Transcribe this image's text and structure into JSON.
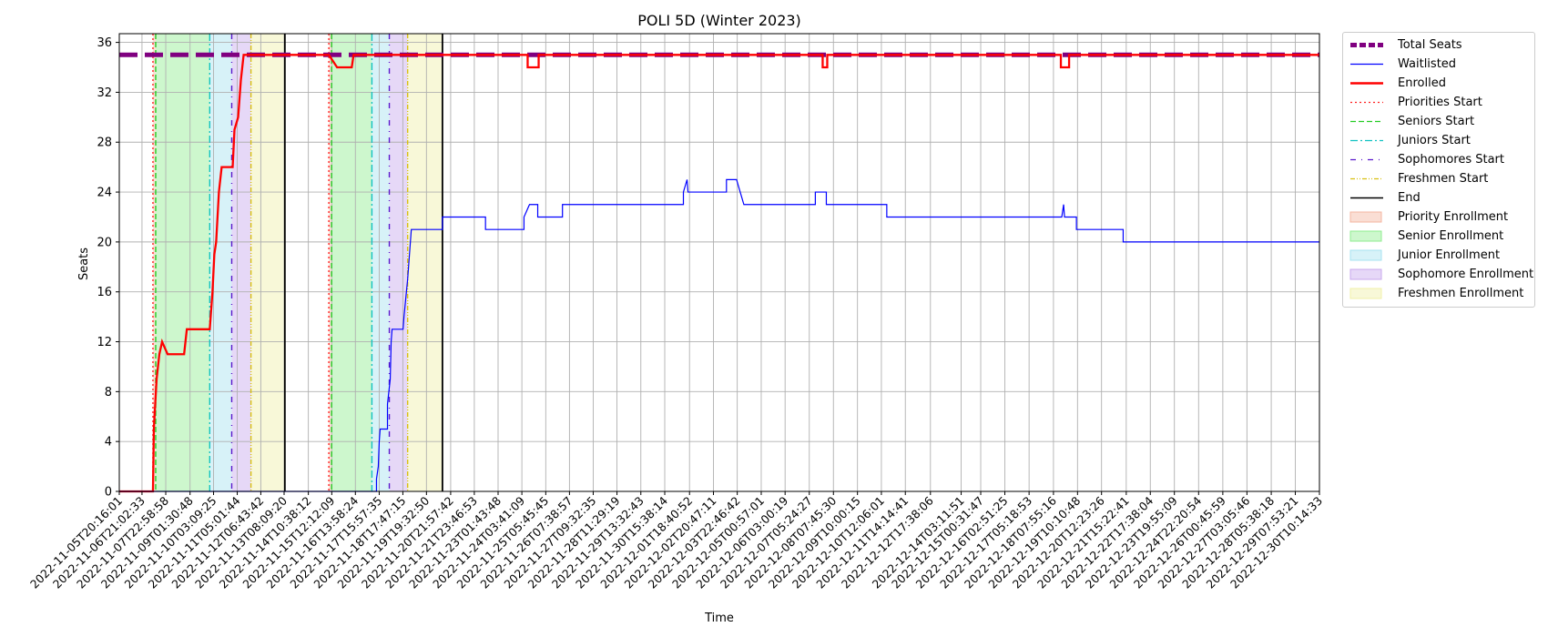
{
  "chart_data": {
    "type": "line",
    "title": "POLI 5D (Winter 2023)",
    "xlabel": "Time",
    "ylabel": "Seats",
    "ylim": [
      0,
      36.7
    ],
    "yticks": [
      0,
      4,
      8,
      12,
      16,
      20,
      24,
      28,
      32,
      36
    ],
    "grid": true,
    "legend_placement": "outside right, top",
    "xlim": [
      "2022-11-05T20:16:01",
      "2022-12-30T10:14:33"
    ],
    "x_tick_labels": [
      "2022-11-05T20:16:01",
      "2022-11-06T21:02:33",
      "2022-11-07T22:58:58",
      "2022-11-09T01:30:48",
      "2022-11-10T03:09:25",
      "2022-11-11T05:01:44",
      "2022-11-12T06:43:42",
      "2022-11-13T08:09:20",
      "2022-11-14T10:38:12",
      "2022-11-15T12:12:09",
      "2022-11-16T13:58:24",
      "2022-11-17T15:57:35",
      "2022-11-18T17:47:15",
      "2022-11-19T19:32:50",
      "2022-11-20T21:57:42",
      "2022-11-21T23:46:53",
      "2022-11-23T01:43:48",
      "2022-11-24T03:41:09",
      "2022-11-25T05:45:45",
      "2022-11-26T07:38:57",
      "2022-11-27T09:32:35",
      "2022-11-28T11:29:19",
      "2022-11-29T13:32:43",
      "2022-11-30T15:38:14",
      "2022-12-01T18:40:52",
      "2022-12-02T20:47:11",
      "2022-12-03T22:46:42",
      "2022-12-05T00:57:01",
      "2022-12-06T03:00:19",
      "2022-12-07T05:24:27",
      "2022-12-08T07:45:30",
      "2022-12-09T10:00:15",
      "2022-12-10T12:06:01",
      "2022-12-11T14:14:41",
      "2022-12-12T17:38:06",
      "2022-12-14T03:11:51",
      "2022-12-15T00:31:47",
      "2022-12-16T02:51:25",
      "2022-12-17T05:18:53",
      "2022-12-18T07:55:16",
      "2022-12-19T10:10:48",
      "2022-12-20T12:23:26",
      "2022-12-21T15:22:41",
      "2022-12-22T17:38:04",
      "2022-12-23T19:55:09",
      "2022-12-24T22:20:54",
      "2022-12-26T00:45:59",
      "2022-12-27T03:05:46",
      "2022-12-28T05:38:18",
      "2022-12-29T07:53:21",
      "2022-12-30T10:14:33"
    ],
    "shaded_regions": [
      {
        "name": "Priority Enrollment",
        "color": "#f4b6a0",
        "spans": [
          [
            "2022-11-07T09:00:00",
            "2022-11-07T12:00:00"
          ],
          [
            "2022-11-15T09:00:00",
            "2022-11-15T12:00:00"
          ]
        ]
      },
      {
        "name": "Senior Enrollment",
        "color": "#90ee90",
        "spans": [
          [
            "2022-11-07T12:00:00",
            "2022-11-09T23:00:00"
          ],
          [
            "2022-11-15T12:00:00",
            "2022-11-17T08:00:00"
          ]
        ]
      },
      {
        "name": "Junior Enrollment",
        "color": "#a7e3f0",
        "spans": [
          [
            "2022-11-09T23:00:00",
            "2022-11-10T23:00:00"
          ],
          [
            "2022-11-17T08:00:00",
            "2022-11-18T03:00:00"
          ]
        ]
      },
      {
        "name": "Sophomore Enrollment",
        "color": "#c8a8ee",
        "spans": [
          [
            "2022-11-10T23:00:00",
            "2022-11-11T20:00:00"
          ],
          [
            "2022-11-18T03:00:00",
            "2022-11-18T23:00:00"
          ]
        ]
      },
      {
        "name": "Freshmen Enrollment",
        "color": "#f0f0a8",
        "spans": [
          [
            "2022-11-11T20:00:00",
            "2022-11-13T09:00:00"
          ],
          [
            "2022-11-18T23:00:00",
            "2022-11-20T13:00:00"
          ]
        ]
      }
    ],
    "vertical_lines": [
      {
        "name": "Priorities Start",
        "color": "#ff2020",
        "dash": "2,3",
        "x": [
          "2022-11-07T09:00:00",
          "2022-11-15T09:00:00"
        ]
      },
      {
        "name": "Seniors Start",
        "color": "#22cc22",
        "dash": "6,3",
        "x": [
          "2022-11-07T12:00:00",
          "2022-11-15T12:00:00"
        ]
      },
      {
        "name": "Juniors Start",
        "color": "#11c2c2",
        "dash": "8,3,2,3",
        "x": [
          "2022-11-09T23:00:00",
          "2022-11-17T08:00:00"
        ]
      },
      {
        "name": "Sophomores Start",
        "color": "#5a18cc",
        "dash": "6,6,1,6",
        "x": [
          "2022-11-10T23:00:00",
          "2022-11-18T03:00:00"
        ]
      },
      {
        "name": "Freshmen Start",
        "color": "#d8c010",
        "dash": "5,2,1,2,1,2",
        "x": [
          "2022-11-11T20:00:00",
          "2022-11-18T23:00:00"
        ]
      },
      {
        "name": "End",
        "color": "#000000",
        "dash": "",
        "x": [
          "2022-11-13T09:00:00",
          "2022-11-20T13:00:00"
        ]
      }
    ],
    "series": [
      {
        "name": "Total Seats",
        "color": "#800080",
        "style": "dashed",
        "width": 5,
        "points": [
          [
            "2022-11-05T20:16:01",
            35
          ],
          [
            "2022-12-30T10:14:33",
            35
          ]
        ]
      },
      {
        "name": "Waitlisted",
        "color": "#0000ff",
        "style": "solid",
        "width": 1.2,
        "points": [
          [
            "2022-11-05T20:16:01",
            0
          ],
          [
            "2022-11-17T13:00:00",
            0
          ],
          [
            "2022-11-17T13:00:00",
            1
          ],
          [
            "2022-11-17T15:00:00",
            2
          ],
          [
            "2022-11-17T16:00:00",
            4
          ],
          [
            "2022-11-17T17:00:00",
            5
          ],
          [
            "2022-11-18T01:00:00",
            5
          ],
          [
            "2022-11-18T01:00:00",
            7
          ],
          [
            "2022-11-18T04:00:00",
            9
          ],
          [
            "2022-11-18T05:00:00",
            12
          ],
          [
            "2022-11-18T06:00:00",
            13
          ],
          [
            "2022-11-18T18:00:00",
            13
          ],
          [
            "2022-11-18T19:00:00",
            14
          ],
          [
            "2022-11-18T23:00:00",
            17
          ],
          [
            "2022-11-19T01:00:00",
            19
          ],
          [
            "2022-11-19T03:00:00",
            21
          ],
          [
            "2022-11-20T13:00:00",
            21
          ],
          [
            "2022-11-20T13:00:00",
            22
          ],
          [
            "2022-11-22T12:00:00",
            22
          ],
          [
            "2022-11-22T12:00:00",
            21
          ],
          [
            "2022-11-24T06:00:00",
            21
          ],
          [
            "2022-11-24T06:00:00",
            22
          ],
          [
            "2022-11-24T12:00:00",
            23
          ],
          [
            "2022-11-24T21:00:00",
            23
          ],
          [
            "2022-11-24T21:00:00",
            22
          ],
          [
            "2022-11-26T00:00:00",
            22
          ],
          [
            "2022-11-26T00:00:00",
            23
          ],
          [
            "2022-12-01T12:00:00",
            23
          ],
          [
            "2022-12-01T12:00:00",
            24
          ],
          [
            "2022-12-01T16:00:00",
            25
          ],
          [
            "2022-12-01T17:00:00",
            24
          ],
          [
            "2022-12-03T11:00:00",
            24
          ],
          [
            "2022-12-03T11:00:00",
            25
          ],
          [
            "2022-12-03T22:00:00",
            25
          ],
          [
            "2022-12-04T02:00:00",
            24
          ],
          [
            "2022-12-04T06:00:00",
            23
          ],
          [
            "2022-12-07T12:00:00",
            23
          ],
          [
            "2022-12-07T12:00:00",
            24
          ],
          [
            "2022-12-08T00:00:00",
            24
          ],
          [
            "2022-12-08T00:00:00",
            23
          ],
          [
            "2022-12-10T18:00:00",
            23
          ],
          [
            "2022-12-10T18:00:00",
            22
          ],
          [
            "2022-12-18T17:00:00",
            22
          ],
          [
            "2022-12-18T19:00:00",
            23
          ],
          [
            "2022-12-18T20:00:00",
            22
          ],
          [
            "2022-12-19T09:00:00",
            22
          ],
          [
            "2022-12-19T09:00:00",
            21
          ],
          [
            "2022-12-21T12:00:00",
            21
          ],
          [
            "2022-12-21T12:00:00",
            20
          ],
          [
            "2022-12-30T10:14:33",
            20
          ]
        ]
      },
      {
        "name": "Enrolled",
        "color": "#ff0000",
        "style": "solid",
        "width": 2.3,
        "points": [
          [
            "2022-11-05T20:16:01",
            0
          ],
          [
            "2022-11-07T09:00:00",
            0
          ],
          [
            "2022-11-07T10:00:00",
            5
          ],
          [
            "2022-11-07T13:00:00",
            9
          ],
          [
            "2022-11-07T16:00:00",
            11
          ],
          [
            "2022-11-07T19:00:00",
            12
          ],
          [
            "2022-11-08T01:00:00",
            11
          ],
          [
            "2022-11-08T19:00:00",
            11
          ],
          [
            "2022-11-08T22:00:00",
            13
          ],
          [
            "2022-11-09T23:00:00",
            13
          ],
          [
            "2022-11-10T02:00:00",
            16
          ],
          [
            "2022-11-10T04:00:00",
            19
          ],
          [
            "2022-11-10T06:00:00",
            20
          ],
          [
            "2022-11-10T09:00:00",
            24
          ],
          [
            "2022-11-10T12:00:00",
            26
          ],
          [
            "2022-11-11T00:00:00",
            26
          ],
          [
            "2022-11-11T02:00:00",
            29
          ],
          [
            "2022-11-11T06:00:00",
            30
          ],
          [
            "2022-11-11T09:00:00",
            33
          ],
          [
            "2022-11-11T12:00:00",
            35
          ],
          [
            "2022-11-15T09:00:00",
            35
          ],
          [
            "2022-11-15T18:00:00",
            34
          ],
          [
            "2022-11-16T10:00:00",
            34
          ],
          [
            "2022-11-16T12:00:00",
            35
          ],
          [
            "2022-11-24T10:00:00",
            35
          ],
          [
            "2022-11-24T10:00:00",
            34
          ],
          [
            "2022-11-24T22:00:00",
            34
          ],
          [
            "2022-11-24T22:00:00",
            35
          ],
          [
            "2022-12-07T20:00:00",
            35
          ],
          [
            "2022-12-07T20:00:00",
            34
          ],
          [
            "2022-12-08T01:00:00",
            34
          ],
          [
            "2022-12-08T01:00:00",
            35
          ],
          [
            "2022-12-18T16:00:00",
            35
          ],
          [
            "2022-12-18T16:00:00",
            34
          ],
          [
            "2022-12-19T01:00:00",
            34
          ],
          [
            "2022-12-19T01:00:00",
            35
          ],
          [
            "2022-12-30T10:14:33",
            35
          ]
        ]
      }
    ],
    "legend": [
      {
        "label": "Total Seats",
        "kind": "line",
        "color": "#800080",
        "dash": "7,3",
        "width": 5
      },
      {
        "label": "Waitlisted",
        "kind": "line",
        "color": "#0000ff",
        "dash": "",
        "width": 1.3
      },
      {
        "label": "Enrolled",
        "kind": "line",
        "color": "#ff0000",
        "dash": "",
        "width": 2.5
      },
      {
        "label": "Priorities Start",
        "kind": "line",
        "color": "#ff2020",
        "dash": "2,3",
        "width": 1.3
      },
      {
        "label": "Seniors Start",
        "kind": "line",
        "color": "#22cc22",
        "dash": "6,3",
        "width": 1.3
      },
      {
        "label": "Juniors Start",
        "kind": "line",
        "color": "#11c2c2",
        "dash": "8,3,2,3",
        "width": 1.3
      },
      {
        "label": "Sophomores Start",
        "kind": "line",
        "color": "#5a18cc",
        "dash": "6,6,1,6",
        "width": 1.3
      },
      {
        "label": "Freshmen Start",
        "kind": "line",
        "color": "#d8c010",
        "dash": "5,2,1,2,1,2",
        "width": 1.3
      },
      {
        "label": "End",
        "kind": "line",
        "color": "#000000",
        "dash": "",
        "width": 1.6
      },
      {
        "label": "Priority Enrollment",
        "kind": "patch",
        "color": "#f4b6a0"
      },
      {
        "label": "Senior Enrollment",
        "kind": "patch",
        "color": "#90ee90"
      },
      {
        "label": "Junior Enrollment",
        "kind": "patch",
        "color": "#a7e3f0"
      },
      {
        "label": "Sophomore Enrollment",
        "kind": "patch",
        "color": "#c8a8ee"
      },
      {
        "label": "Freshmen Enrollment",
        "kind": "patch",
        "color": "#f0f0a8"
      }
    ]
  }
}
